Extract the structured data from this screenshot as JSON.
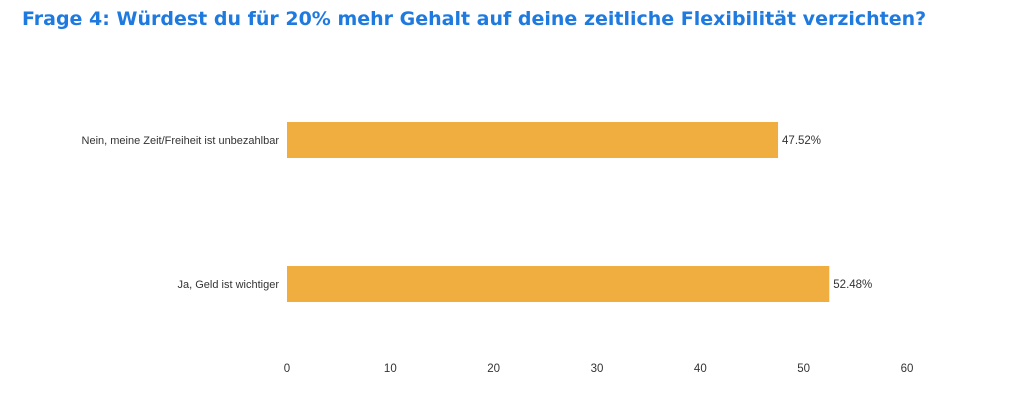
{
  "chart_data": {
    "type": "bar",
    "orientation": "horizontal",
    "title": "Frage 4: Würdest du für 20% mehr Gehalt auf deine zeitliche Flexibilität verzichten?",
    "categories": [
      "Nein, meine Zeit/Freiheit ist unbezahlbar",
      "Ja, Geld ist wichtiger"
    ],
    "values": [
      47.52,
      52.48
    ],
    "value_labels": [
      "47.52%",
      "52.48%"
    ],
    "xlim": [
      0,
      60
    ],
    "x_ticks": [
      0,
      10,
      20,
      30,
      40,
      50,
      60
    ],
    "grid": false,
    "colors": {
      "bar": "#f0ad40",
      "title": "#1f7ae0"
    }
  }
}
